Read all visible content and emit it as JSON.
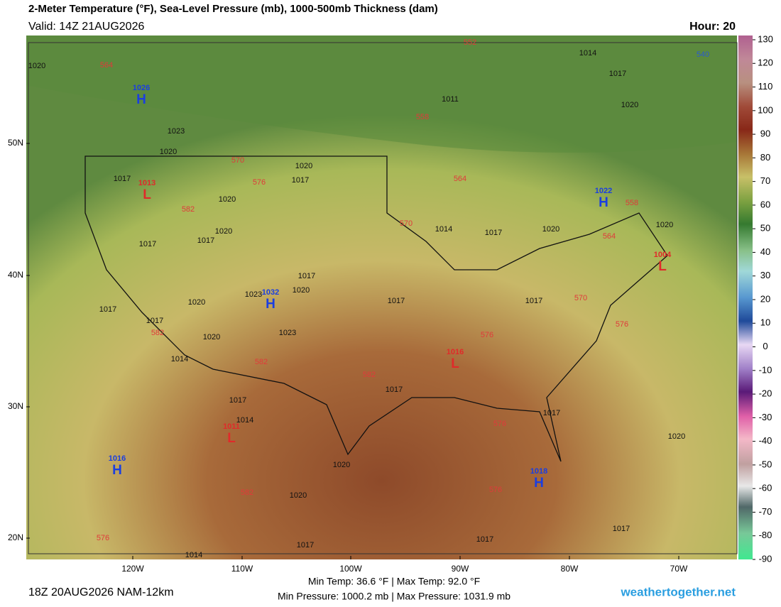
{
  "header": {
    "title": "2-Meter Temperature (°F), Sea-Level Pressure (mb), 1000-500mb Thickness (dam)",
    "valid": "Valid: 14Z 21AUG2026",
    "hour": "Hour: 20"
  },
  "map": {
    "lat_labels": [
      "50N",
      "40N",
      "30N",
      "20N"
    ],
    "lon_labels": [
      "120W",
      "110W",
      "100W",
      "90W",
      "80W",
      "70W"
    ],
    "pressure_centers": [
      {
        "symbol": "H",
        "value": 1026
      },
      {
        "symbol": "L",
        "value": 1013
      },
      {
        "symbol": "H",
        "value": 1022
      },
      {
        "symbol": "L",
        "value": 1004
      },
      {
        "symbol": "H",
        "value": 1032
      },
      {
        "symbol": "L",
        "value": 1016
      },
      {
        "symbol": "L",
        "value": 1011
      },
      {
        "symbol": "H",
        "value": 1016
      },
      {
        "symbol": "H",
        "value": 1018
      }
    ],
    "isobar_labels": [
      1020,
      1014,
      1017,
      1011,
      1020,
      1023,
      1020,
      1020,
      1017,
      1017,
      1020,
      1020,
      1017,
      1017,
      1014,
      1017,
      1020,
      1020,
      1017,
      1020,
      1023,
      1017,
      1020,
      1017,
      1017,
      1017,
      1020,
      1023,
      1014,
      1017,
      1017,
      1014,
      1017,
      1020,
      1020,
      1020,
      1017,
      1017,
      1017,
      1014
    ],
    "thickness_labels": [
      552,
      564,
      540,
      558,
      570,
      576,
      564,
      558,
      582,
      570,
      564,
      570,
      576,
      576,
      582,
      582,
      582,
      576,
      576,
      582,
      576
    ]
  },
  "colorbar": {
    "ticks": [
      130,
      120,
      110,
      100,
      90,
      80,
      70,
      60,
      50,
      40,
      30,
      20,
      10,
      0,
      -10,
      -20,
      -30,
      -40,
      -50,
      -60,
      -70,
      -80,
      -90
    ]
  },
  "footer": {
    "run": "18Z 20AUG2026 NAM-12km",
    "temps": "Min Temp:  36.6 °F | Max Temp:  92.0 °F",
    "pressures": "Min Pressure: 1000.2 mb | Max Pressure: 1031.9 mb",
    "site": "weathertogether.net"
  }
}
